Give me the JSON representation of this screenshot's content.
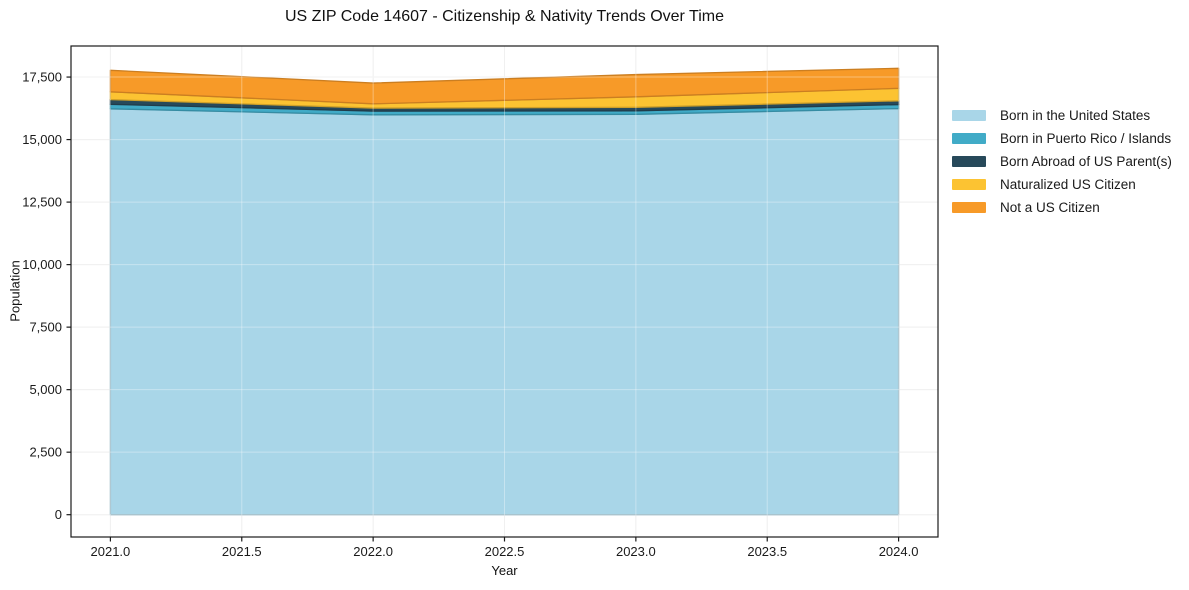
{
  "figure": {
    "background": "#ffffff",
    "axis_color": "#1a1a1a",
    "grid_color": "#e9e9e9"
  },
  "chart_data": {
    "type": "area",
    "stacked": true,
    "title": "US ZIP Code 14607 - Citizenship & Nativity Trends Over Time",
    "xlabel": "Year",
    "ylabel": "Population",
    "x": [
      2021,
      2022,
      2023,
      2024
    ],
    "series": [
      {
        "name": "Born in the United States",
        "color": "#a9d6e8",
        "values": [
          16230,
          15990,
          16010,
          16240
        ]
      },
      {
        "name": "Born in Puerto Rico / Islands",
        "color": "#41abc7",
        "values": [
          180,
          150,
          140,
          160
        ]
      },
      {
        "name": "Born Abroad of US Parent(s)",
        "color": "#27495a",
        "values": [
          190,
          120,
          140,
          150
        ]
      },
      {
        "name": "Naturalized US Citizen",
        "color": "#fcc332",
        "values": [
          310,
          170,
          420,
          500
        ]
      },
      {
        "name": "Not a US Citizen",
        "color": "#f79a28",
        "values": [
          860,
          830,
          890,
          800
        ]
      }
    ],
    "totals": [
      17770,
      17260,
      17600,
      17850
    ],
    "x_ticks": [
      2021.0,
      2021.5,
      2022.0,
      2022.5,
      2023.0,
      2023.5,
      2024.0
    ],
    "x_tick_labels": [
      "2021.0",
      "2021.5",
      "2022.0",
      "2022.5",
      "2023.0",
      "2023.5",
      "2024.0"
    ],
    "y_ticks": [
      0,
      2500,
      5000,
      7500,
      10000,
      12500,
      15000,
      17500
    ],
    "y_tick_labels": [
      "0",
      "2,500",
      "5,000",
      "7,500",
      "10,000",
      "12,500",
      "15,000",
      "17,500"
    ],
    "xlim": [
      2020.85,
      2024.15
    ],
    "ylim": [
      -892,
      18742
    ],
    "grid": true,
    "legend_position": "outside-right"
  }
}
